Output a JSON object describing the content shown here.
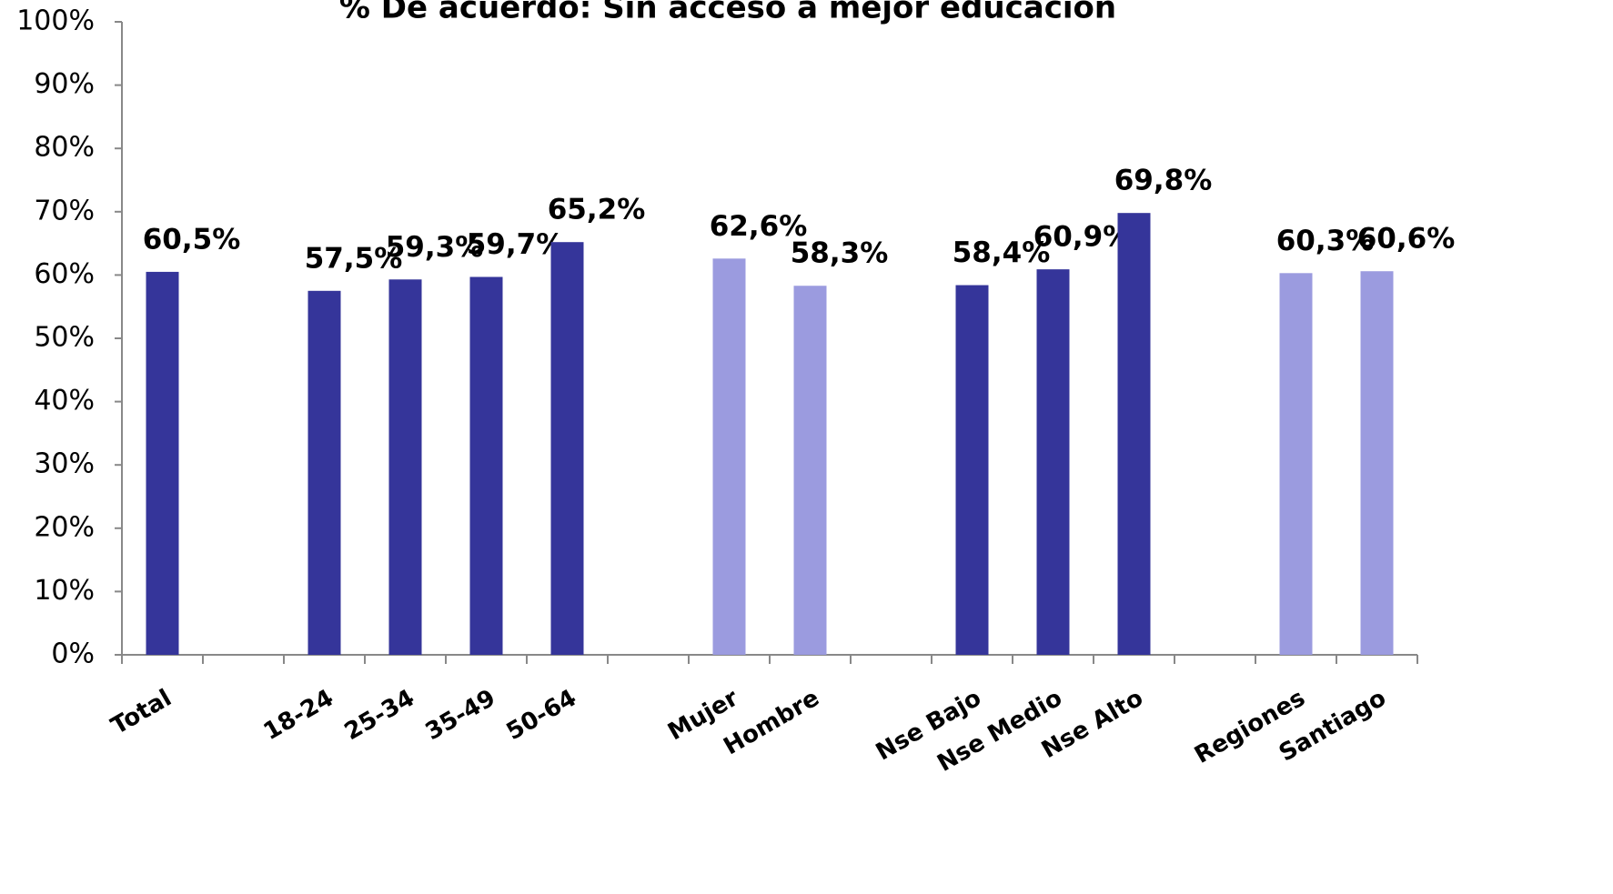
{
  "chart_data": {
    "type": "bar",
    "title": "% De acuerdo: Sin acceso a mejor educación",
    "categories": [
      "Total",
      null,
      "18-24",
      "25-34",
      "35-49",
      "50-64",
      null,
      "Mujer",
      "Hombre",
      null,
      "Nse Bajo",
      "Nse Medio",
      "Nse Alto",
      null,
      "Regiones",
      "Santiago"
    ],
    "values": [
      60.5,
      null,
      57.5,
      59.3,
      59.7,
      65.2,
      null,
      62.6,
      58.3,
      null,
      58.4,
      60.9,
      69.8,
      null,
      60.3,
      60.6
    ],
    "value_labels": [
      "60,5%",
      null,
      "57,5%",
      "59,3%",
      "59,7%",
      "65,2%",
      null,
      "62,6%",
      "58,3%",
      null,
      "58,4%",
      "60,9%",
      "69,8%",
      null,
      "60,3%",
      "60,6%"
    ],
    "colors": [
      "#35359a",
      null,
      "#35359a",
      "#35359a",
      "#35359a",
      "#35359a",
      null,
      "#9b9bdf",
      "#9b9bdf",
      null,
      "#35359a",
      "#35359a",
      "#35359a",
      null,
      "#9b9bdf",
      "#9b9bdf"
    ],
    "ylim": [
      0,
      100
    ],
    "yticks": [
      {
        "value": 0,
        "label": "0%"
      },
      {
        "value": 10,
        "label": "10%"
      },
      {
        "value": 20,
        "label": "20%"
      },
      {
        "value": 30,
        "label": "30%"
      },
      {
        "value": 40,
        "label": "40%"
      },
      {
        "value": 50,
        "label": "50%"
      },
      {
        "value": 60,
        "label": "60%"
      },
      {
        "value": 70,
        "label": "70%"
      },
      {
        "value": 80,
        "label": "80%"
      },
      {
        "value": 90,
        "label": "90%"
      },
      {
        "value": 100,
        "label": "100%"
      }
    ],
    "grid": false
  }
}
